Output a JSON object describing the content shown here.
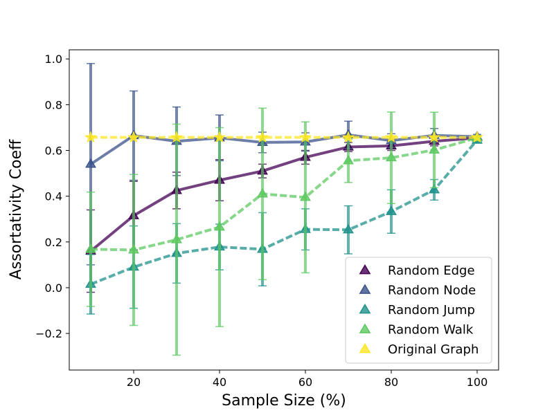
{
  "chart_data": {
    "type": "line",
    "xlabel": "Sample Size (%)",
    "ylabel": "Assortativity Coeff",
    "xlim": [
      5,
      105
    ],
    "ylim": [
      -0.36,
      1.04
    ],
    "x_ticks": [
      20,
      40,
      60,
      80,
      100
    ],
    "x_tick_labels": [
      "20",
      "40",
      "60",
      "80",
      "100"
    ],
    "y_ticks": [
      -0.2,
      0.0,
      0.2,
      0.4,
      0.6,
      0.8,
      1.0
    ],
    "y_tick_labels": [
      "−0.2",
      "0.0",
      "0.2",
      "0.4",
      "0.6",
      "0.8",
      "1.0"
    ],
    "grid": false,
    "legend_position": "bottom-right",
    "x": [
      10,
      20,
      30,
      40,
      50,
      60,
      70,
      80,
      90,
      100
    ],
    "series": [
      {
        "name": "Random Edge",
        "color": "#440154",
        "line_style": "solid",
        "marker": "triangle",
        "values": [
          0.16,
          0.315,
          0.425,
          0.47,
          0.51,
          0.57,
          0.615,
          0.62,
          0.64,
          0.655
        ],
        "error": [
          0.18,
          0.15,
          0.08,
          0.09,
          0.03,
          0.03,
          0.02,
          0.02,
          0.02,
          0.01
        ]
      },
      {
        "name": "Random Node",
        "color": "#3b528b",
        "line_style": "solid",
        "marker": "triangle",
        "values": [
          0.54,
          0.665,
          0.64,
          0.655,
          0.635,
          0.637,
          0.668,
          0.643,
          0.666,
          0.66
        ],
        "error": [
          0.44,
          0.195,
          0.15,
          0.1,
          0.045,
          0.04,
          0.06,
          0.03,
          0.03,
          0.01
        ]
      },
      {
        "name": "Random Jump",
        "color": "#21918c",
        "line_style": "dashed",
        "marker": "triangle",
        "values": [
          0.015,
          0.09,
          0.15,
          0.178,
          0.168,
          0.255,
          0.253,
          0.333,
          0.428,
          0.645
        ],
        "error": [
          0.13,
          0.18,
          0.13,
          0.1,
          0.16,
          0.09,
          0.105,
          0.095,
          0.045,
          0.01
        ]
      },
      {
        "name": "Random Walk",
        "color": "#5ec962",
        "line_style": "dashed",
        "marker": "triangle",
        "values": [
          0.168,
          0.165,
          0.21,
          0.265,
          0.41,
          0.395,
          0.555,
          0.568,
          0.602,
          0.655
        ],
        "error": [
          0.25,
          0.33,
          0.505,
          0.435,
          0.375,
          0.33,
          0.095,
          0.2,
          0.165,
          0.01
        ]
      },
      {
        "name": "Original Graph",
        "color": "#fde725",
        "line_style": "dashed",
        "marker": "star",
        "values": [
          0.657,
          0.657,
          0.657,
          0.657,
          0.657,
          0.657,
          0.657,
          0.657,
          0.657,
          0.657
        ],
        "error": [
          0,
          0,
          0,
          0,
          0,
          0,
          0,
          0,
          0,
          0
        ]
      }
    ]
  }
}
